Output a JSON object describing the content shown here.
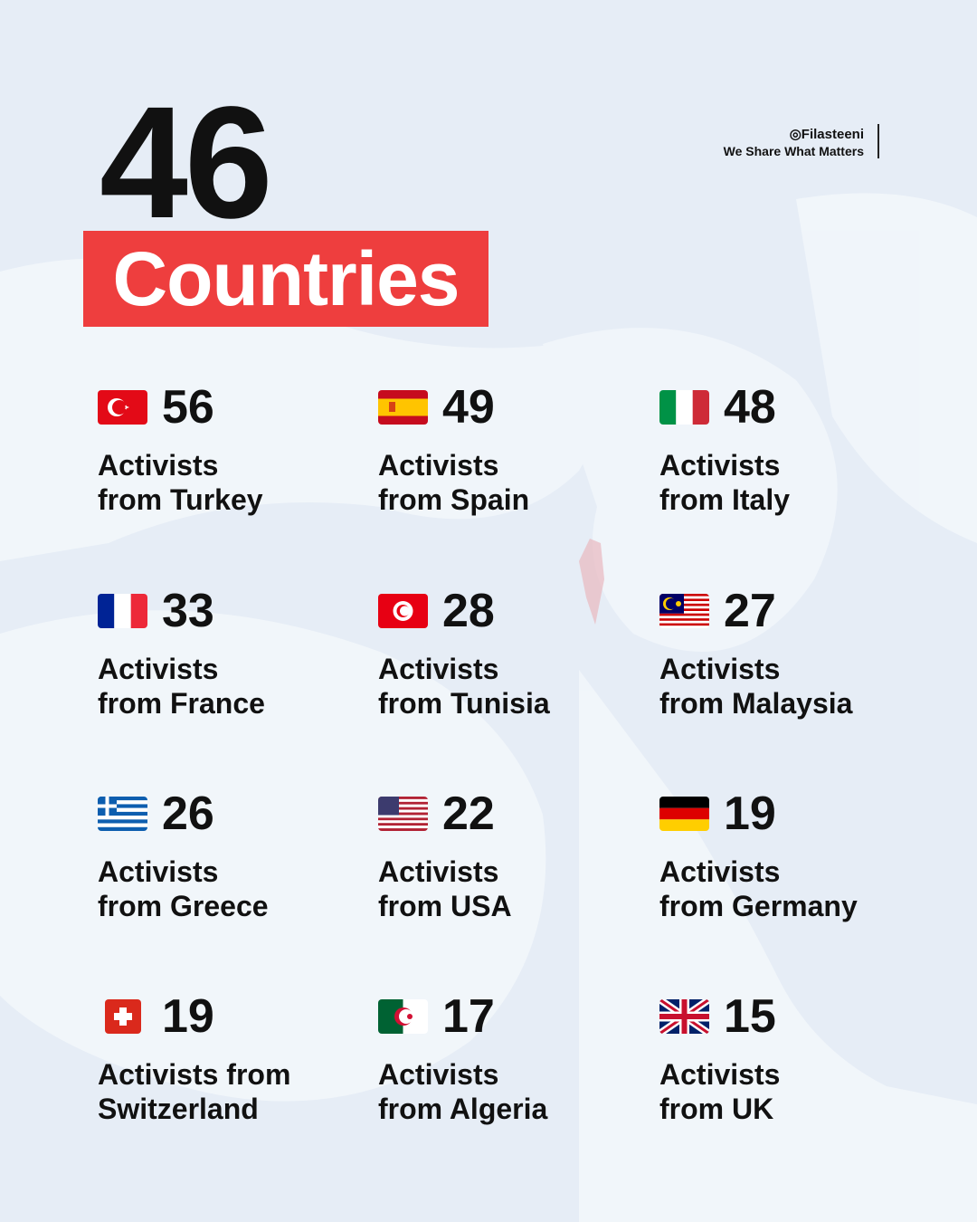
{
  "headline": {
    "number": "46",
    "label": "Countries"
  },
  "brand": {
    "handle": "Filasteeni",
    "tagline": "We Share What Matters",
    "icon": "instagram-icon"
  },
  "colors": {
    "accent": "#ee3e3e",
    "background": "#e6edf6"
  },
  "items": [
    {
      "flag": "turkey",
      "count": "56",
      "line1": "Activists",
      "line2": "from Turkey"
    },
    {
      "flag": "spain",
      "count": "49",
      "line1": "Activists",
      "line2": "from Spain"
    },
    {
      "flag": "italy",
      "count": "48",
      "line1": "Activists",
      "line2": "from Italy"
    },
    {
      "flag": "france",
      "count": "33",
      "line1": "Activists",
      "line2": "from France"
    },
    {
      "flag": "tunisia",
      "count": "28",
      "line1": "Activists",
      "line2": "from Tunisia"
    },
    {
      "flag": "malaysia",
      "count": "27",
      "line1": "Activists",
      "line2": "from Malaysia"
    },
    {
      "flag": "greece",
      "count": "26",
      "line1": "Activists",
      "line2": "from Greece"
    },
    {
      "flag": "usa",
      "count": "22",
      "line1": "Activists",
      "line2": "from USA"
    },
    {
      "flag": "germany",
      "count": "19",
      "line1": "Activists",
      "line2": "from Germany"
    },
    {
      "flag": "switzerland",
      "count": "19",
      "line1": "Activists from",
      "line2": "Switzerland"
    },
    {
      "flag": "algeria",
      "count": "17",
      "line1": "Activists",
      "line2": "from Algeria"
    },
    {
      "flag": "uk",
      "count": "15",
      "line1": "Activists",
      "line2": "from UK"
    }
  ]
}
